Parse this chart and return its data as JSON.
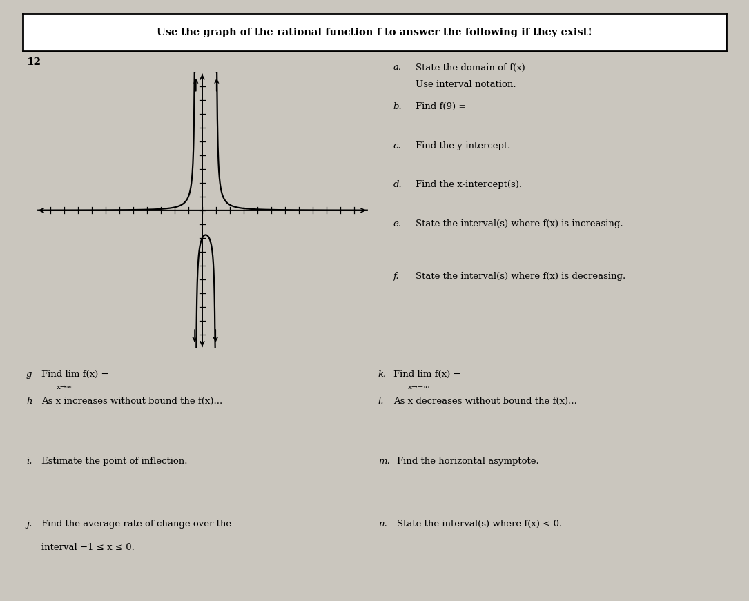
{
  "title": "Use the graph of the rational function f to answer the following if they exist!",
  "problem_number": "12",
  "bg_color": "#cac6be",
  "va1": -0.5,
  "va2": 1.0,
  "xlim": [
    -12,
    12
  ],
  "ylim": [
    -10,
    10
  ],
  "questions_right": [
    {
      "label": "a.",
      "text1": "State the domain of f(x)",
      "text2": "Use interval notation."
    },
    {
      "label": "b.",
      "text1": "Find f(9) =",
      "text2": ""
    },
    {
      "label": "c.",
      "text1": "Find the y-intercept.",
      "text2": ""
    },
    {
      "label": "d.",
      "text1": "Find the x-intercept(s).",
      "text2": ""
    },
    {
      "label": "e.",
      "text1": "State the interval(s) where f(x) is increasing.",
      "text2": ""
    },
    {
      "label": "f.",
      "text1": "State the interval(s) where f(x) is decreasing.",
      "text2": ""
    }
  ]
}
